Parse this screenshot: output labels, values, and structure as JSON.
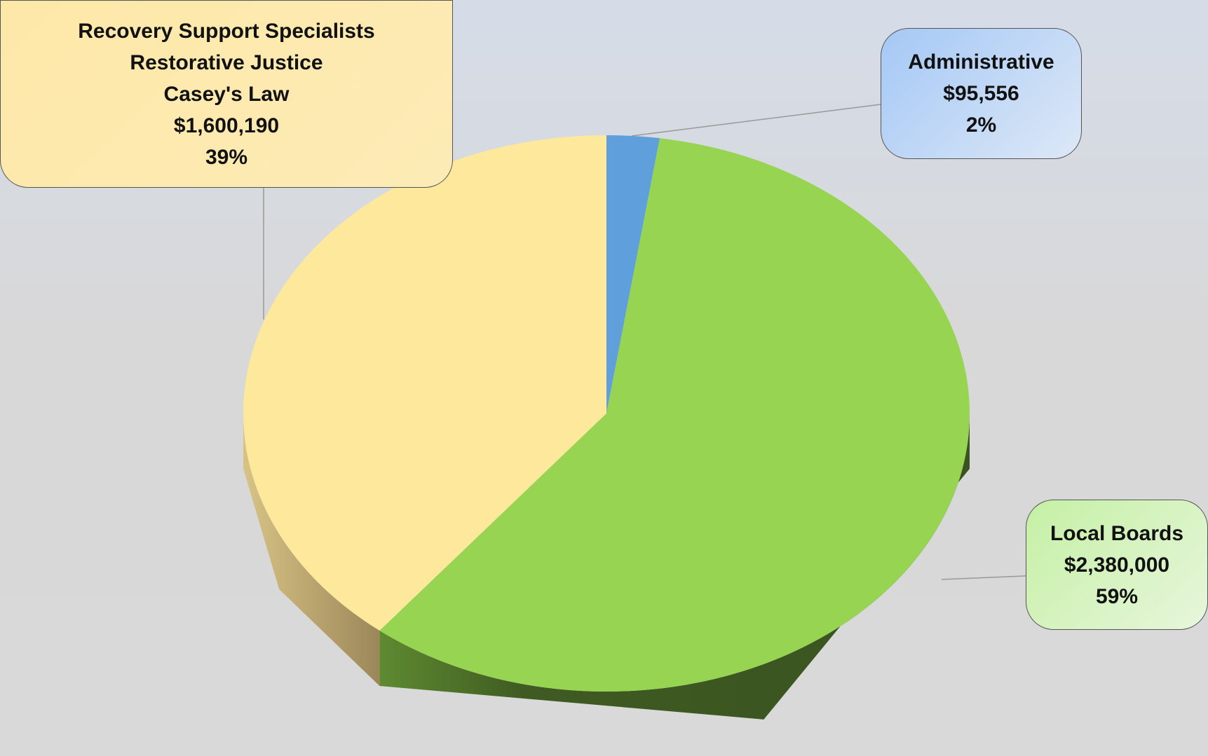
{
  "chart_data": {
    "type": "pie3d",
    "categories": [
      "Administrative",
      "Local Boards",
      "Recovery Support Specialists\nRestorative Justice\nCasey's Law"
    ],
    "values": [
      95556,
      2380000,
      1600190
    ],
    "value_labels": [
      "$95,556",
      "$2,380,000",
      "$1,600,190"
    ],
    "percent_labels": [
      "2%",
      "59%",
      "39%"
    ],
    "colors": [
      "#5f9fdb",
      "#96d452",
      "#fee89b"
    ]
  }
}
